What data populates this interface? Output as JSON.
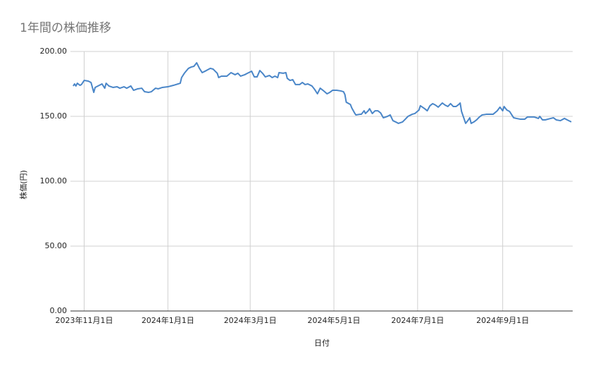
{
  "chart_data": {
    "type": "line",
    "title": "1年間の株価推移",
    "x_label": "日付",
    "y_label": "株価(円)",
    "color": "#4a86c8",
    "grid": true,
    "xlim": [
      "2023-10-22",
      "2024-10-22"
    ],
    "xticks": [
      {
        "value": "2023-11-01",
        "label": "2023年11月1日"
      },
      {
        "value": "2024-01-01",
        "label": "2024年1月1日"
      },
      {
        "value": "2024-03-01",
        "label": "2024年3月1日"
      },
      {
        "value": "2024-05-01",
        "label": "2024年5月1日"
      },
      {
        "value": "2024-07-01",
        "label": "2024年7月1日"
      },
      {
        "value": "2024-09-01",
        "label": "2024年9月1日"
      }
    ],
    "ylim": [
      0,
      200
    ],
    "yticks": [
      {
        "value": 0,
        "label": "0.00"
      },
      {
        "value": 50,
        "label": "50.00"
      },
      {
        "value": 100,
        "label": "100.00"
      },
      {
        "value": 150,
        "label": "150.00"
      },
      {
        "value": 200,
        "label": "200.00"
      }
    ],
    "x": [
      "2023-10-24",
      "2023-10-25",
      "2023-10-26",
      "2023-10-27",
      "2023-10-29",
      "2023-10-30",
      "2023-11-01",
      "2023-11-04",
      "2023-11-06",
      "2023-11-08",
      "2023-11-09",
      "2023-11-12",
      "2023-11-14",
      "2023-11-16",
      "2023-11-17",
      "2023-11-19",
      "2023-11-22",
      "2023-11-25",
      "2023-11-27",
      "2023-11-30",
      "2023-12-02",
      "2023-12-05",
      "2023-12-07",
      "2023-12-10",
      "2023-12-13",
      "2023-12-15",
      "2023-12-18",
      "2023-12-20",
      "2023-12-23",
      "2023-12-25",
      "2023-12-28",
      "2024-01-01",
      "2024-01-05",
      "2024-01-10",
      "2024-01-11",
      "2024-01-13",
      "2024-01-16",
      "2024-01-18",
      "2024-01-20",
      "2024-01-22",
      "2024-01-24",
      "2024-01-26",
      "2024-01-29",
      "2024-02-01",
      "2024-02-03",
      "2024-02-06",
      "2024-02-07",
      "2024-02-09",
      "2024-02-11",
      "2024-02-13",
      "2024-02-16",
      "2024-02-19",
      "2024-02-21",
      "2024-02-23",
      "2024-02-26",
      "2024-02-28",
      "2024-03-02",
      "2024-03-04",
      "2024-03-06",
      "2024-03-08",
      "2024-03-10",
      "2024-03-12",
      "2024-03-15",
      "2024-03-17",
      "2024-03-19",
      "2024-03-21",
      "2024-03-22",
      "2024-03-25",
      "2024-03-27",
      "2024-03-28",
      "2024-03-30",
      "2024-04-01",
      "2024-04-03",
      "2024-04-06",
      "2024-04-08",
      "2024-04-10",
      "2024-04-12",
      "2024-04-15",
      "2024-04-17",
      "2024-04-19",
      "2024-04-21",
      "2024-04-23",
      "2024-04-26",
      "2024-04-28",
      "2024-04-30",
      "2024-05-03",
      "2024-05-06",
      "2024-05-08",
      "2024-05-09",
      "2024-05-10",
      "2024-05-13",
      "2024-05-14",
      "2024-05-16",
      "2024-05-17",
      "2024-05-20",
      "2024-05-21",
      "2024-05-23",
      "2024-05-24",
      "2024-05-26",
      "2024-05-27",
      "2024-05-29",
      "2024-05-31",
      "2024-06-02",
      "2024-06-04",
      "2024-06-06",
      "2024-06-09",
      "2024-06-11",
      "2024-06-13",
      "2024-06-15",
      "2024-06-17",
      "2024-06-20",
      "2024-06-22",
      "2024-06-24",
      "2024-06-27",
      "2024-06-29",
      "2024-07-02",
      "2024-07-03",
      "2024-07-06",
      "2024-07-08",
      "2024-07-10",
      "2024-07-12",
      "2024-07-14",
      "2024-07-16",
      "2024-07-19",
      "2024-07-21",
      "2024-07-23",
      "2024-07-25",
      "2024-07-27",
      "2024-07-29",
      "2024-07-31",
      "2024-08-01",
      "2024-08-02",
      "2024-08-05",
      "2024-08-07",
      "2024-08-08",
      "2024-08-09",
      "2024-08-11",
      "2024-08-13",
      "2024-08-15",
      "2024-08-17",
      "2024-08-20",
      "2024-08-22",
      "2024-08-25",
      "2024-08-28",
      "2024-08-30",
      "2024-09-01",
      "2024-09-02",
      "2024-09-04",
      "2024-09-06",
      "2024-09-09",
      "2024-09-11",
      "2024-09-14",
      "2024-09-17",
      "2024-09-19",
      "2024-09-22",
      "2024-09-24",
      "2024-09-27",
      "2024-09-28",
      "2024-09-30",
      "2024-10-02",
      "2024-10-06",
      "2024-10-08",
      "2024-10-10",
      "2024-10-13",
      "2024-10-16",
      "2024-10-18",
      "2024-10-21"
    ],
    "values": [
      173.4,
      175.0,
      173.4,
      175.5,
      173.9,
      174.5,
      177.7,
      177.2,
      176.1,
      168.5,
      172.3,
      173.9,
      175.0,
      171.7,
      175.5,
      173.4,
      172.3,
      172.8,
      171.7,
      172.8,
      171.7,
      173.4,
      170.1,
      171.2,
      171.7,
      169.0,
      168.5,
      169.0,
      171.7,
      171.2,
      172.3,
      172.8,
      173.9,
      175.5,
      179.9,
      183.2,
      187.0,
      188.0,
      188.6,
      191.3,
      187.0,
      183.7,
      185.3,
      187.0,
      186.4,
      183.2,
      179.9,
      181.0,
      181.0,
      181.0,
      183.7,
      182.1,
      183.2,
      181.0,
      182.1,
      183.2,
      184.8,
      180.4,
      180.4,
      185.3,
      183.2,
      180.4,
      181.5,
      179.9,
      181.0,
      179.9,
      183.7,
      183.2,
      183.7,
      179.3,
      177.7,
      178.3,
      174.5,
      174.5,
      176.1,
      174.5,
      175.0,
      173.4,
      170.7,
      167.4,
      171.7,
      170.1,
      167.4,
      168.5,
      170.1,
      170.1,
      169.6,
      169.0,
      166.8,
      160.9,
      159.2,
      156.5,
      152.7,
      151.1,
      151.6,
      151.6,
      154.3,
      152.2,
      154.3,
      155.9,
      152.2,
      154.3,
      154.3,
      152.7,
      148.9,
      150.0,
      151.1,
      146.7,
      145.7,
      144.6,
      145.7,
      147.8,
      150.0,
      151.6,
      152.2,
      154.9,
      158.2,
      156.0,
      154.3,
      158.2,
      159.8,
      158.7,
      157.1,
      160.3,
      158.7,
      157.6,
      159.8,
      157.6,
      157.6,
      159.2,
      160.3,
      153.8,
      144.6,
      147.3,
      148.9,
      144.6,
      145.7,
      147.3,
      149.5,
      151.1,
      151.6,
      151.6,
      151.6,
      154.3,
      157.1,
      154.3,
      157.6,
      154.9,
      153.8,
      148.9,
      148.4,
      147.8,
      147.8,
      149.5,
      149.5,
      149.5,
      148.4,
      150.0,
      147.3,
      147.3,
      148.4,
      148.9,
      147.3,
      146.7,
      148.4,
      147.3,
      145.7
    ]
  }
}
